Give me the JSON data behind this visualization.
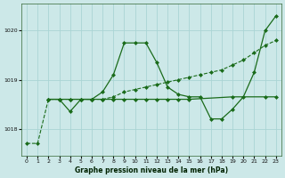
{
  "background_color": "#cce8e8",
  "plot_bg_color": "#cce8e8",
  "grid_color": "#aad4d4",
  "line_color": "#1a6b1a",
  "xlabel": "Graphe pression niveau de la mer (hPa)",
  "xlim": [
    -0.5,
    23.5
  ],
  "ylim": [
    1017.45,
    1020.55
  ],
  "yticks": [
    1018,
    1019,
    1020
  ],
  "xticks": [
    0,
    1,
    2,
    3,
    4,
    5,
    6,
    7,
    8,
    9,
    10,
    11,
    12,
    13,
    14,
    15,
    16,
    17,
    18,
    19,
    20,
    21,
    22,
    23
  ],
  "series": [
    {
      "x": [
        0,
        1,
        2,
        3,
        4,
        5,
        6,
        7,
        8,
        9,
        10,
        11,
        12,
        13,
        14,
        15,
        16,
        17,
        18,
        19,
        20,
        21,
        22,
        23
      ],
      "y": [
        1017.7,
        1017.7,
        1018.6,
        1018.6,
        1018.6,
        1018.6,
        1018.6,
        1018.6,
        1018.65,
        1018.75,
        1018.8,
        1018.85,
        1018.9,
        1018.95,
        1019.0,
        1019.05,
        1019.1,
        1019.15,
        1019.2,
        1019.3,
        1019.4,
        1019.55,
        1019.7,
        1019.8
      ],
      "style": "--",
      "marker": "D",
      "markersize": 2.0,
      "linewidth": 0.8
    },
    {
      "x": [
        2,
        3,
        4,
        5,
        6,
        7,
        8,
        9,
        10,
        11,
        12,
        13,
        14,
        15,
        16,
        17,
        18,
        19,
        20,
        21,
        22,
        23
      ],
      "y": [
        1018.6,
        1018.6,
        1018.35,
        1018.6,
        1018.6,
        1018.75,
        1019.1,
        1019.75,
        1019.75,
        1019.75,
        1019.35,
        1018.85,
        1018.7,
        1018.65,
        1018.65,
        1018.2,
        1018.2,
        1018.4,
        1018.65,
        1019.15,
        1020.0,
        1020.3
      ],
      "style": "-",
      "marker": "D",
      "markersize": 2.0,
      "linewidth": 0.9
    },
    {
      "x": [
        2,
        3,
        4,
        5,
        6,
        7,
        8,
        9,
        10,
        11,
        12,
        13,
        14,
        15,
        19,
        22,
        23
      ],
      "y": [
        1018.6,
        1018.6,
        1018.6,
        1018.6,
        1018.6,
        1018.6,
        1018.6,
        1018.6,
        1018.6,
        1018.6,
        1018.6,
        1018.6,
        1018.6,
        1018.6,
        1018.65,
        1018.65,
        1018.65
      ],
      "style": "-",
      "marker": "D",
      "markersize": 2.0,
      "linewidth": 0.9
    }
  ]
}
